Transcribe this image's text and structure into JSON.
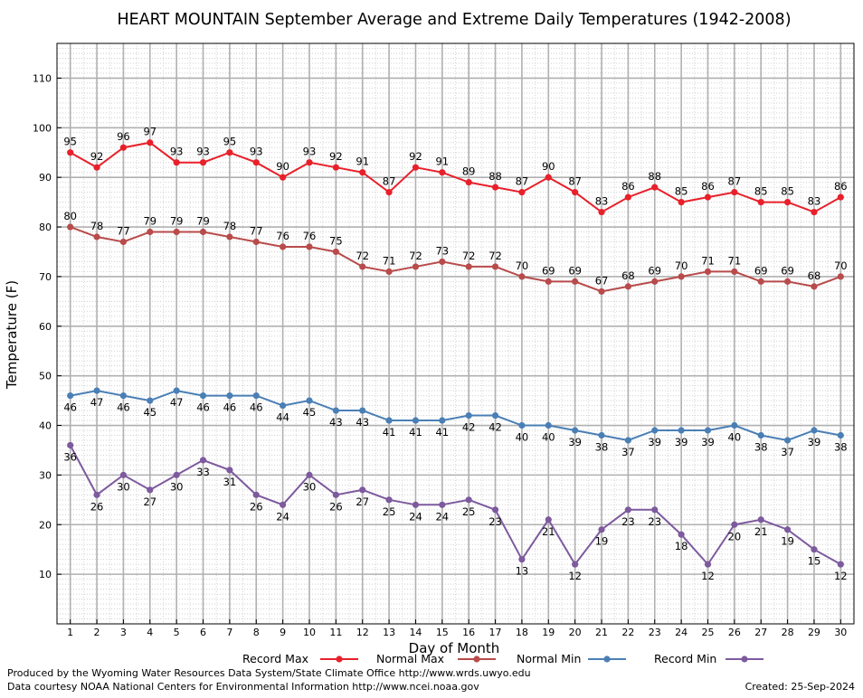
{
  "chart_data": {
    "type": "line",
    "title": "HEART MOUNTAIN September Average and Extreme Daily Temperatures (1942-2008)",
    "xlabel": "Day of Month",
    "ylabel": "Temperature (F)",
    "ylim": [
      0,
      117
    ],
    "xlim": [
      0.5,
      30.5
    ],
    "yticks": [
      10,
      20,
      30,
      40,
      50,
      60,
      70,
      80,
      90,
      100,
      110
    ],
    "grid": true,
    "legend_position": "bottom",
    "x": [
      1,
      2,
      3,
      4,
      5,
      6,
      7,
      8,
      9,
      10,
      11,
      12,
      13,
      14,
      15,
      16,
      17,
      18,
      19,
      20,
      21,
      22,
      23,
      24,
      25,
      26,
      27,
      28,
      29,
      30
    ],
    "series": [
      {
        "name": "Record Max",
        "color": "#e8202a",
        "label_pos": "above",
        "values": [
          95,
          92,
          96,
          97,
          93,
          93,
          95,
          93,
          90,
          93,
          92,
          91,
          87,
          92,
          91,
          89,
          88,
          87,
          90,
          87,
          83,
          86,
          88,
          85,
          86,
          87,
          85,
          85,
          83,
          86
        ]
      },
      {
        "name": "Normal Max",
        "color": "#b84b4b",
        "label_pos": "above",
        "values": [
          80,
          78,
          77,
          79,
          79,
          79,
          78,
          77,
          76,
          76,
          75,
          72,
          71,
          72,
          73,
          72,
          72,
          70,
          69,
          69,
          67,
          68,
          69,
          70,
          71,
          71,
          69,
          69,
          68,
          70
        ]
      },
      {
        "name": "Normal Min",
        "color": "#4a7fb5",
        "label_pos": "below",
        "values": [
          46,
          47,
          46,
          45,
          47,
          46,
          46,
          46,
          44,
          45,
          43,
          43,
          41,
          41,
          41,
          42,
          42,
          40,
          40,
          39,
          38,
          37,
          39,
          39,
          39,
          40,
          38,
          37,
          39,
          38
        ]
      },
      {
        "name": "Record Min",
        "color": "#7d5a9e",
        "label_pos": "below",
        "values": [
          36,
          26,
          30,
          27,
          30,
          33,
          31,
          26,
          24,
          30,
          26,
          27,
          25,
          24,
          24,
          25,
          23,
          13,
          21,
          12,
          19,
          23,
          23,
          18,
          12,
          20,
          21,
          19,
          15,
          12
        ]
      }
    ]
  },
  "footer": {
    "produced_by": "Produced by the Wyoming Water Resources Data System/State Climate Office http://www.wrds.uwyo.edu",
    "data_courtesy": "Data courtesy NOAA National Centers for Environmental Information http://www.ncei.noaa.gov",
    "created": "Created:  25-Sep-2024"
  }
}
